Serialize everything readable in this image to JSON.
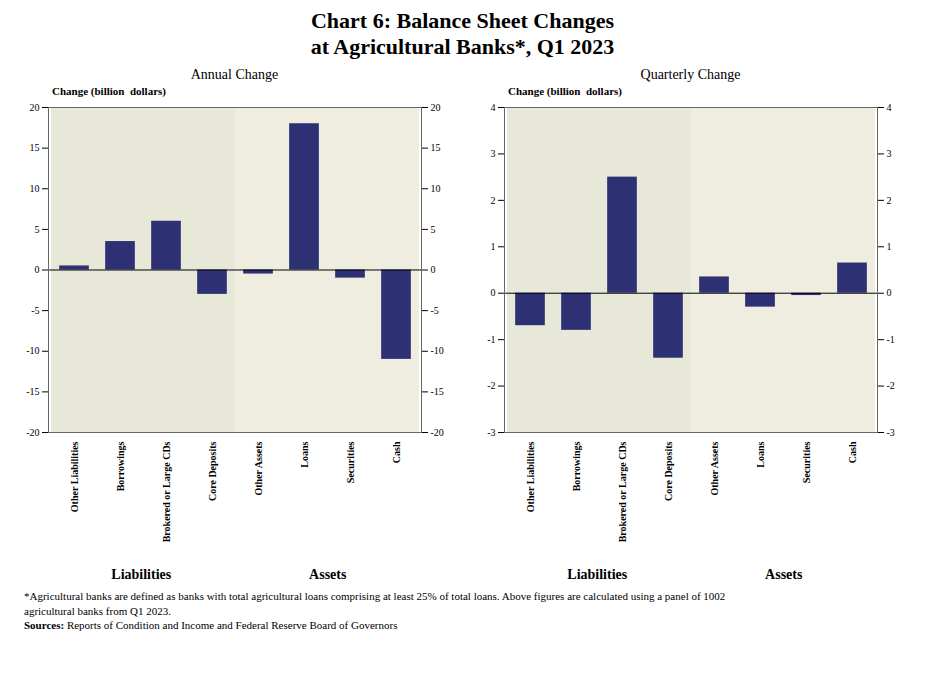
{
  "title": "Chart 6: Balance Sheet Changes\nat Agricultural Banks*, Q1 2023",
  "chart_data": [
    {
      "type": "bar",
      "title": "Annual Change",
      "ylabel": "Change (billion  dollars)",
      "categories": [
        "Other Liabilities",
        "Borrowings",
        "Brokered or Large CDs",
        "Core Deposits",
        "Other Assets",
        "Loans",
        "Securities",
        "Cash"
      ],
      "values": [
        0.5,
        3.5,
        6.0,
        -3.0,
        -0.5,
        18.0,
        -1.0,
        -11.0
      ],
      "color": "#2d3173",
      "ylim": [
        -20,
        20
      ],
      "yticks": [
        -20,
        -15,
        -10,
        -5,
        0,
        5,
        10,
        15,
        20
      ],
      "grid": false,
      "groups": [
        {
          "name": "Liabilities",
          "color": "#e8e8d8",
          "categories": [
            "Other Liabilities",
            "Borrowings",
            "Brokered or Large CDs",
            "Core Deposits"
          ]
        },
        {
          "name": "Assets",
          "color": "#eeede0",
          "categories": [
            "Other Assets",
            "Loans",
            "Securities",
            "Cash"
          ]
        }
      ]
    },
    {
      "type": "bar",
      "title": "Quarterly Change",
      "ylabel": "Change (billion  dollars)",
      "categories": [
        "Other Liabilities",
        "Borrowings",
        "Brokered or Large CDs",
        "Core Deposits",
        "Other Assets",
        "Loans",
        "Securities",
        "Cash"
      ],
      "values": [
        -0.7,
        -0.8,
        2.5,
        -1.4,
        0.35,
        -0.3,
        -0.05,
        0.65
      ],
      "color": "#2d3173",
      "ylim": [
        -3,
        4
      ],
      "yticks": [
        -3,
        -2,
        -1,
        0,
        1,
        2,
        3,
        4
      ],
      "grid": false,
      "groups": [
        {
          "name": "Liabilities",
          "color": "#e8e8d8",
          "categories": [
            "Other Liabilities",
            "Borrowings",
            "Brokered or Large CDs",
            "Core Deposits"
          ]
        },
        {
          "name": "Assets",
          "color": "#eeede0",
          "categories": [
            "Other Assets",
            "Loans",
            "Securities",
            "Cash"
          ]
        }
      ]
    }
  ],
  "notes": [
    "*Agricultural banks are defined as banks with total agricultural loans comprising at least 25% of total loans. Above figures are calculated using a panel of 1002",
    "agricultural banks from Q1 2023."
  ],
  "source": {
    "label": "Sources:",
    "text": "Reports of Condition and Income and Federal Reserve Board of Governors"
  }
}
